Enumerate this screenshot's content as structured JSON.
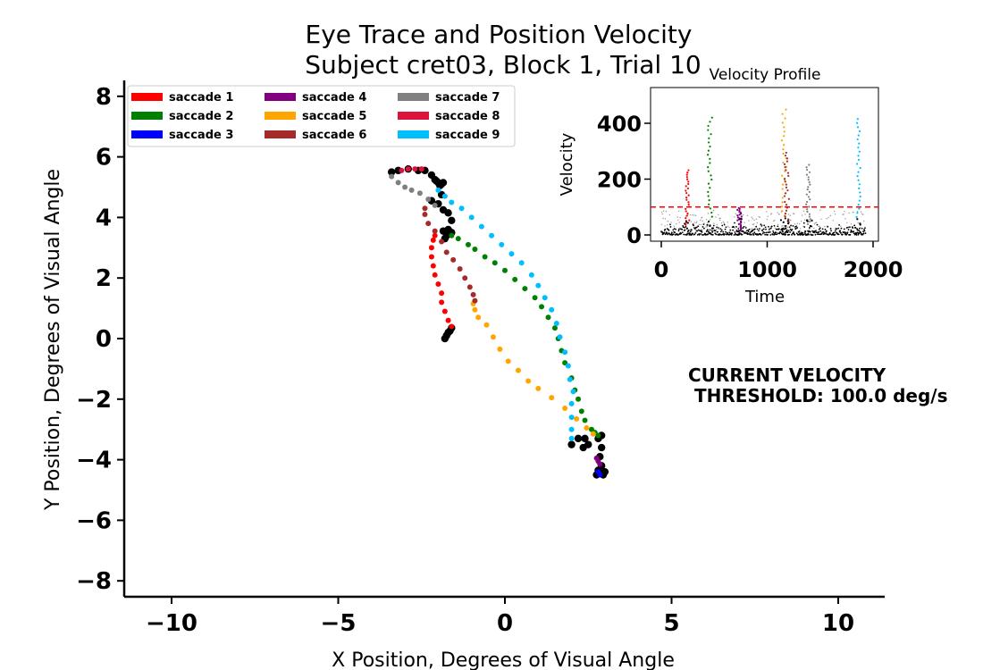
{
  "chart_data": [
    {
      "type": "scatter",
      "title": "Eye Trace and Position Velocity",
      "subtitle": "Subject cret03, Block 1, Trial 10",
      "xlabel": "X Position, Degrees of Visual Angle",
      "ylabel": "Y Position, Degrees of Visual Angle",
      "xlim": [
        -11.5,
        11.5
      ],
      "ylim": [
        -8.7,
        8.7
      ],
      "xticks": [
        -10,
        -5,
        0,
        5,
        10
      ],
      "yticks": [
        -8,
        -6,
        -4,
        -2,
        0,
        2,
        4,
        6,
        8
      ],
      "xtick_labels": [
        "−10",
        "−5",
        "0",
        "5",
        "10"
      ],
      "ytick_labels": [
        "−8",
        "−6",
        "−4",
        "−2",
        "0",
        "2",
        "4",
        "6",
        "8"
      ],
      "legend_position": "top-left",
      "grid": false,
      "fixation": {
        "color": "#000000",
        "points": [
          [
            -3.4,
            5.5
          ],
          [
            -3.2,
            5.55
          ],
          [
            -2.9,
            5.6
          ],
          [
            -2.6,
            5.55
          ],
          [
            -2.4,
            5.55
          ],
          [
            -2.2,
            5.4
          ],
          [
            -2.1,
            5.25
          ],
          [
            -2.0,
            5.15
          ],
          [
            -1.9,
            5.1
          ],
          [
            -1.85,
            5.15
          ],
          [
            -2.05,
            5.2
          ],
          [
            -1.95,
            5.05
          ],
          [
            -1.9,
            4.75
          ],
          [
            -2.2,
            4.55
          ],
          [
            -2.0,
            4.45
          ],
          [
            -1.85,
            4.25
          ],
          [
            -1.7,
            4.15
          ],
          [
            -1.6,
            3.9
          ],
          [
            -1.7,
            3.6
          ],
          [
            -1.85,
            3.55
          ],
          [
            -1.75,
            3.4
          ],
          [
            -1.6,
            3.5
          ],
          [
            -1.8,
            3.3
          ],
          [
            -1.8,
            0.0
          ],
          [
            -1.75,
            0.1
          ],
          [
            -1.7,
            0.2
          ],
          [
            -1.6,
            0.35
          ],
          [
            -1.65,
            0.25
          ],
          [
            2.0,
            -3.5
          ],
          [
            2.2,
            -3.3
          ],
          [
            2.4,
            -3.3
          ],
          [
            2.5,
            -3.5
          ],
          [
            2.35,
            -3.6
          ],
          [
            2.8,
            -3.3
          ],
          [
            2.9,
            -3.2
          ],
          [
            2.9,
            -3.6
          ],
          [
            2.85,
            -3.9
          ],
          [
            2.9,
            -4.2
          ],
          [
            3.0,
            -4.4
          ],
          [
            2.95,
            -4.5
          ],
          [
            2.75,
            -4.5
          ],
          [
            2.8,
            -4.35
          ]
        ]
      },
      "series": [
        {
          "name": "saccade  1",
          "color": "#ff0000",
          "points": [
            [
              -1.6,
              0.4
            ],
            [
              -1.7,
              0.6
            ],
            [
              -1.8,
              0.9
            ],
            [
              -1.9,
              1.2
            ],
            [
              -1.9,
              1.5
            ],
            [
              -2.0,
              1.8
            ],
            [
              -2.1,
              2.1
            ],
            [
              -2.15,
              2.4
            ],
            [
              -2.2,
              2.7
            ],
            [
              -2.2,
              3.0
            ],
            [
              -2.15,
              3.25
            ],
            [
              -2.1,
              3.4
            ]
          ]
        },
        {
          "name": "saccade  2",
          "color": "#008000",
          "points": [
            [
              -1.6,
              3.4
            ],
            [
              -1.4,
              3.3
            ],
            [
              -1.1,
              3.1
            ],
            [
              -0.9,
              2.95
            ],
            [
              -0.6,
              2.7
            ],
            [
              -0.3,
              2.5
            ],
            [
              0.0,
              2.25
            ],
            [
              0.3,
              1.95
            ],
            [
              0.6,
              1.65
            ],
            [
              0.9,
              1.35
            ],
            [
              1.1,
              1.05
            ],
            [
              1.3,
              0.7
            ],
            [
              1.5,
              0.35
            ],
            [
              1.6,
              0.0
            ],
            [
              1.7,
              -0.4
            ],
            [
              1.8,
              -0.8
            ],
            [
              2.0,
              -1.3
            ],
            [
              2.1,
              -1.7
            ],
            [
              2.2,
              -2.0
            ],
            [
              2.3,
              -2.4
            ],
            [
              2.4,
              -2.7
            ],
            [
              2.6,
              -3.0
            ],
            [
              2.7,
              -3.1
            ],
            [
              2.8,
              -3.2
            ]
          ]
        },
        {
          "name": "saccade  3",
          "color": "#0000ff",
          "points": [
            [
              2.8,
              -4.4
            ],
            [
              2.85,
              -4.5
            ]
          ]
        },
        {
          "name": "saccade  4",
          "color": "#800080",
          "points": [
            [
              2.75,
              -3.95
            ],
            [
              2.8,
              -4.05
            ],
            [
              2.85,
              -4.15
            ]
          ]
        },
        {
          "name": "saccade  5",
          "color": "#ffa500",
          "points": [
            [
              -0.95,
              1.15
            ],
            [
              -0.9,
              0.95
            ],
            [
              -0.8,
              0.7
            ],
            [
              -0.55,
              0.45
            ],
            [
              -0.35,
              0.05
            ],
            [
              -0.15,
              -0.35
            ],
            [
              0.1,
              -0.75
            ],
            [
              0.4,
              -1.05
            ],
            [
              0.7,
              -1.4
            ],
            [
              1.0,
              -1.65
            ],
            [
              1.4,
              -1.95
            ],
            [
              1.8,
              -2.3
            ],
            [
              2.15,
              -2.65
            ],
            [
              2.45,
              -2.95
            ],
            [
              2.65,
              -3.15
            ]
          ]
        },
        {
          "name": "saccade  6",
          "color": "#a52a2a",
          "points": [
            [
              -2.4,
              4.3
            ],
            [
              -2.4,
              4.1
            ],
            [
              -2.3,
              3.8
            ],
            [
              -2.1,
              3.55
            ],
            [
              -1.9,
              3.2
            ],
            [
              -1.75,
              2.85
            ],
            [
              -1.55,
              2.6
            ],
            [
              -1.35,
              2.3
            ],
            [
              -1.2,
              2.0
            ],
            [
              -1.05,
              1.7
            ],
            [
              -0.95,
              1.45
            ],
            [
              -0.9,
              1.25
            ]
          ]
        },
        {
          "name": "saccade  7",
          "color": "#808080",
          "points": [
            [
              -3.4,
              5.35
            ],
            [
              -3.2,
              5.15
            ],
            [
              -3.0,
              5.0
            ],
            [
              -2.8,
              4.9
            ],
            [
              -2.55,
              4.8
            ],
            [
              -2.3,
              4.6
            ],
            [
              -2.1,
              4.4
            ]
          ]
        },
        {
          "name": "saccade  8",
          "color": "#dc143c",
          "points": [
            [
              -3.1,
              5.55
            ],
            [
              -2.9,
              5.6
            ],
            [
              -2.7,
              5.6
            ],
            [
              -2.5,
              5.6
            ]
          ]
        },
        {
          "name": "saccade  9",
          "color": "#00bfff",
          "points": [
            [
              -2.0,
              4.9
            ],
            [
              -1.8,
              4.7
            ],
            [
              -1.6,
              4.5
            ],
            [
              -1.3,
              4.3
            ],
            [
              -1.0,
              4.0
            ],
            [
              -0.7,
              3.7
            ],
            [
              -0.4,
              3.4
            ],
            [
              -0.1,
              3.1
            ],
            [
              0.2,
              2.8
            ],
            [
              0.5,
              2.5
            ],
            [
              0.8,
              2.1
            ],
            [
              1.0,
              1.75
            ],
            [
              1.2,
              1.35
            ],
            [
              1.4,
              0.95
            ],
            [
              1.55,
              0.5
            ],
            [
              1.65,
              0.05
            ],
            [
              1.8,
              -0.45
            ],
            [
              1.9,
              -0.9
            ],
            [
              1.95,
              -1.35
            ],
            [
              2.05,
              -1.75
            ],
            [
              2.0,
              -2.15
            ],
            [
              2.0,
              -2.6
            ],
            [
              2.0,
              -3.0
            ],
            [
              2.0,
              -3.3
            ]
          ]
        }
      ]
    },
    {
      "type": "scatter",
      "title": "Velocity Profile",
      "xlabel": "Time",
      "ylabel": "Velocity",
      "xlim": [
        -100,
        2000
      ],
      "ylim": [
        -10,
        530
      ],
      "xticks": [
        0,
        1000,
        2000
      ],
      "yticks": [
        0,
        200,
        400
      ],
      "xtick_labels": [
        "0",
        "1000",
        "2000"
      ],
      "ytick_labels": [
        "0",
        "200",
        "400"
      ],
      "threshold": {
        "value": 100,
        "color": "#ff0000",
        "style": "dashed"
      },
      "peaks": [
        {
          "color": "#ff0000",
          "center": 250,
          "height": 240
        },
        {
          "color": "#008000",
          "center": 460,
          "height": 435
        },
        {
          "color": "#800080",
          "center": 740,
          "height": 100
        },
        {
          "color": "#ffa500",
          "center": 1160,
          "height": 465
        },
        {
          "color": "#a52a2a",
          "center": 1185,
          "height": 305
        },
        {
          "color": "#808080",
          "center": 1390,
          "height": 260
        },
        {
          "color": "#00bfff",
          "center": 1860,
          "height": 430
        }
      ]
    }
  ],
  "legend": [
    {
      "label": "saccade  1",
      "color": "#ff0000"
    },
    {
      "label": "saccade  2",
      "color": "#008000"
    },
    {
      "label": "saccade  3",
      "color": "#0000ff"
    },
    {
      "label": "saccade  4",
      "color": "#800080"
    },
    {
      "label": "saccade  5",
      "color": "#ffa500"
    },
    {
      "label": "saccade  6",
      "color": "#a52a2a"
    },
    {
      "label": "saccade  7",
      "color": "#808080"
    },
    {
      "label": "saccade  8",
      "color": "#dc143c"
    },
    {
      "label": "saccade  9",
      "color": "#00bfff"
    }
  ],
  "annotation": {
    "line1": "CURRENT VELOCITY",
    "line2": " THRESHOLD: 100.0 deg/s"
  }
}
